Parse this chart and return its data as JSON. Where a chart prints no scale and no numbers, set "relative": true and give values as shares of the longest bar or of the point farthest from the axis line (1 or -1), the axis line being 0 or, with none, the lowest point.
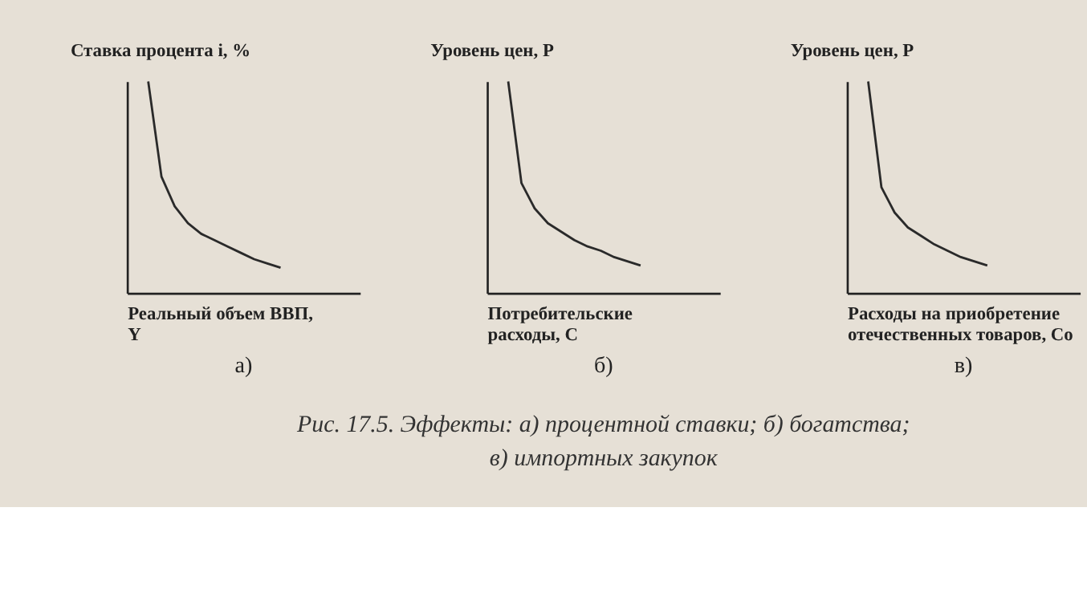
{
  "chart_data": [
    {
      "type": "line",
      "relative": true,
      "tick_labels": false,
      "grid": false,
      "legend": false,
      "color": "#2a2a2a",
      "ylabel": "Ставка процента i, %",
      "xlabel": "Реальный объем ВВП,\nY",
      "annotations": [
        "а)",
        "Рис. 17.5. Эффекты: а) процентной ставки; б) богатства;\nв) импортных закупок"
      ],
      "categories": [
        null,
        null,
        null,
        null,
        null,
        null,
        null,
        null,
        null,
        null,
        null,
        null,
        null,
        null,
        null,
        null,
        null,
        null
      ],
      "values": [
        null,
        1.0,
        0.55,
        0.41,
        0.33,
        0.28,
        0.25,
        0.22,
        0.19,
        0.16,
        0.14,
        0.12,
        null,
        null,
        null,
        null,
        null,
        null
      ]
    },
    {
      "type": "line",
      "relative": true,
      "tick_labels": false,
      "grid": false,
      "legend": false,
      "color": "#2a2a2a",
      "ylabel": "Уровень цен, Р",
      "xlabel": "Потребительские\nрасходы, С",
      "annotations": [
        "б)"
      ],
      "categories": [
        null,
        null,
        null,
        null,
        null,
        null,
        null,
        null,
        null,
        null,
        null,
        null,
        null,
        null,
        null,
        null,
        null,
        null
      ],
      "values": [
        null,
        1.0,
        0.52,
        0.4,
        0.33,
        0.29,
        0.25,
        0.22,
        0.2,
        0.17,
        0.15,
        0.13,
        null,
        null,
        null,
        null,
        null,
        null
      ]
    },
    {
      "type": "line",
      "relative": true,
      "tick_labels": false,
      "grid": false,
      "legend": false,
      "color": "#2a2a2a",
      "ylabel": "Уровень цен, Р",
      "xlabel": "Расходы на приобретение\nотечественных товаров, Со",
      "annotations": [
        "в)"
      ],
      "categories": [
        null,
        null,
        null,
        null,
        null,
        null,
        null,
        null,
        null,
        null,
        null,
        null,
        null,
        null,
        null,
        null,
        null,
        null
      ],
      "values": [
        null,
        1.0,
        0.5,
        0.38,
        0.31,
        0.27,
        0.23,
        0.2,
        0.17,
        0.15,
        0.13,
        null,
        null,
        null,
        null,
        null,
        null,
        null
      ]
    }
  ]
}
